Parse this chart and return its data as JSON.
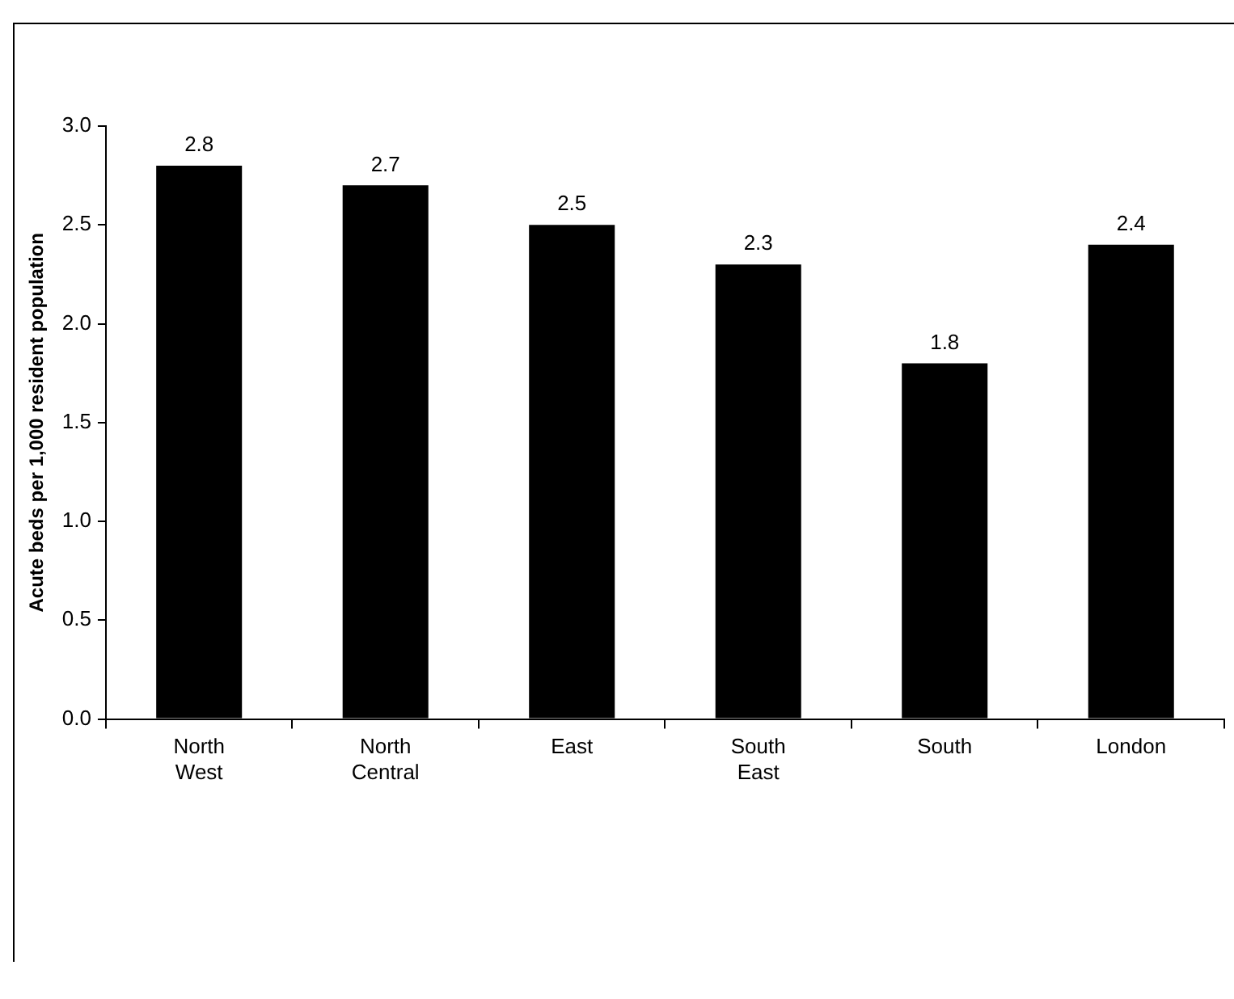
{
  "chart_data": {
    "type": "bar",
    "ylabel": "Acute beds per 1,000 resident population",
    "categories": [
      "North West",
      "North Central",
      "East",
      "South East",
      "South",
      "London"
    ],
    "values": [
      2.8,
      2.7,
      2.5,
      2.3,
      1.8,
      2.4
    ],
    "color": "#000000",
    "ylim": [
      0,
      3
    ],
    "yticks": [
      {
        "value": 0,
        "label": "0.0"
      },
      {
        "value": 0.5,
        "label": "0.5"
      },
      {
        "value": 1,
        "label": "1.0"
      },
      {
        "value": 1.5,
        "label": "1.5"
      },
      {
        "value": 2,
        "label": "2.0"
      },
      {
        "value": 2.5,
        "label": "2.5"
      },
      {
        "value": 3,
        "label": "3.0"
      }
    ],
    "data_labels": true,
    "grid": false,
    "legend": false
  }
}
